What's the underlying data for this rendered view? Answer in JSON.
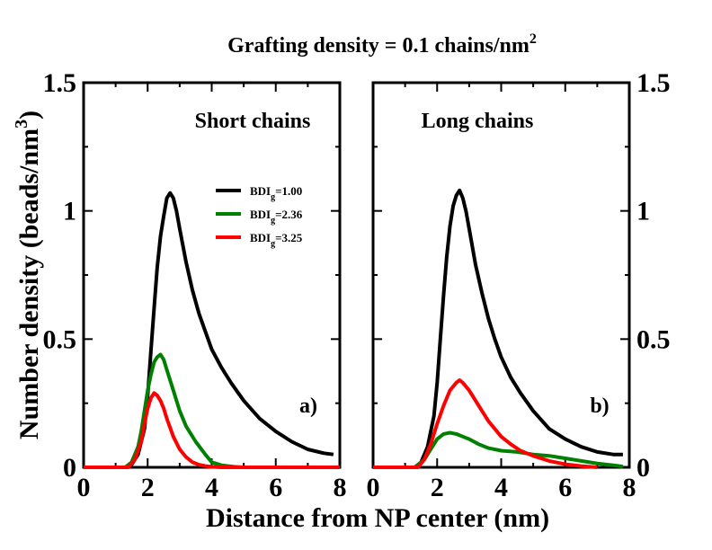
{
  "figure_title": "Grafting density = 0.1 chains/nm",
  "figure_title_sup": "2",
  "ylabel_main": "Number density (beads/nm",
  "ylabel_sup": "3",
  "ylabel_close": ")",
  "xlabel": "Distance from NP center (nm)",
  "colors": {
    "black": "#000000",
    "green": "#008000",
    "red": "#ff0000"
  },
  "legend": [
    {
      "base": "BDI",
      "sub": "g",
      "value": "=1.00",
      "color": "#000000"
    },
    {
      "base": "BDI",
      "sub": "g",
      "value": "=2.36",
      "color": "#008000"
    },
    {
      "base": "BDI",
      "sub": "g",
      "value": "=3.25",
      "color": "#ff0000"
    }
  ],
  "chart_data": [
    {
      "type": "line",
      "panel": "a)",
      "title": "Short chains",
      "xlim": [
        0,
        8
      ],
      "ylim": [
        0,
        1.5
      ],
      "xticks": [
        0,
        2,
        4,
        6,
        8
      ],
      "yticks": [
        0,
        0.5,
        1,
        1.5
      ],
      "ytick_labels": [
        "0",
        "0.5",
        "1",
        "1.5"
      ],
      "series": [
        {
          "name": "BDI_g=1.00",
          "color": "#000000",
          "x": [
            0,
            1.3,
            1.5,
            1.7,
            1.9,
            2.0,
            2.1,
            2.2,
            2.3,
            2.4,
            2.5,
            2.6,
            2.7,
            2.8,
            2.9,
            3.0,
            3.2,
            3.4,
            3.6,
            3.8,
            4.0,
            4.3,
            4.6,
            5.0,
            5.5,
            6.0,
            6.5,
            7.0,
            7.5,
            7.8
          ],
          "y": [
            0,
            0,
            0.01,
            0.05,
            0.15,
            0.28,
            0.45,
            0.62,
            0.78,
            0.9,
            0.98,
            1.05,
            1.07,
            1.05,
            1.0,
            0.93,
            0.8,
            0.69,
            0.6,
            0.53,
            0.46,
            0.39,
            0.33,
            0.26,
            0.19,
            0.14,
            0.1,
            0.07,
            0.055,
            0.05
          ]
        },
        {
          "name": "BDI_g=2.36",
          "color": "#008000",
          "x": [
            0,
            1.3,
            1.5,
            1.7,
            1.8,
            1.9,
            2.0,
            2.1,
            2.2,
            2.3,
            2.4,
            2.5,
            2.6,
            2.8,
            3.0,
            3.2,
            3.5,
            3.8,
            4.0,
            4.3,
            4.7,
            5.0,
            8.0
          ],
          "y": [
            0,
            0,
            0.02,
            0.08,
            0.14,
            0.22,
            0.3,
            0.36,
            0.41,
            0.43,
            0.44,
            0.42,
            0.38,
            0.3,
            0.22,
            0.16,
            0.1,
            0.05,
            0.02,
            0.008,
            0.002,
            0,
            0
          ]
        },
        {
          "name": "BDI_g=3.25",
          "color": "#ff0000",
          "x": [
            0,
            1.4,
            1.6,
            1.8,
            1.9,
            2.0,
            2.1,
            2.2,
            2.3,
            2.4,
            2.5,
            2.6,
            2.8,
            3.0,
            3.2,
            3.4,
            3.6,
            3.8,
            4.0,
            4.3,
            8.0
          ],
          "y": [
            0,
            0,
            0.03,
            0.1,
            0.17,
            0.23,
            0.27,
            0.29,
            0.28,
            0.26,
            0.23,
            0.19,
            0.12,
            0.07,
            0.04,
            0.02,
            0.01,
            0.005,
            0.002,
            0,
            0
          ]
        }
      ]
    },
    {
      "type": "line",
      "panel": "b)",
      "title": "Long chains",
      "xlim": [
        0,
        8
      ],
      "ylim": [
        0,
        1.5
      ],
      "xticks": [
        0,
        2,
        4,
        6,
        8
      ],
      "yticks": [
        0,
        0.5,
        1,
        1.5
      ],
      "ytick_labels": [
        "0",
        "0.5",
        "1",
        "1.5"
      ],
      "series": [
        {
          "name": "BDI_g=1.00",
          "color": "#000000",
          "x": [
            0,
            1.3,
            1.5,
            1.7,
            1.9,
            2.0,
            2.1,
            2.2,
            2.3,
            2.4,
            2.5,
            2.6,
            2.7,
            2.8,
            2.9,
            3.0,
            3.2,
            3.4,
            3.6,
            3.8,
            4.0,
            4.3,
            4.6,
            5.0,
            5.5,
            6.0,
            6.5,
            7.0,
            7.5,
            7.8
          ],
          "y": [
            0,
            0,
            0.02,
            0.08,
            0.2,
            0.33,
            0.5,
            0.67,
            0.82,
            0.94,
            1.02,
            1.06,
            1.08,
            1.05,
            1.0,
            0.93,
            0.79,
            0.68,
            0.58,
            0.5,
            0.43,
            0.35,
            0.29,
            0.22,
            0.15,
            0.11,
            0.08,
            0.06,
            0.05,
            0.05
          ]
        },
        {
          "name": "BDI_g=2.36",
          "color": "#008000",
          "x": [
            0,
            1.3,
            1.6,
            1.8,
            2.0,
            2.2,
            2.4,
            2.6,
            2.8,
            3.0,
            3.3,
            3.6,
            4.0,
            4.5,
            5.0,
            5.5,
            6.0,
            6.5,
            7.0,
            7.5,
            7.8
          ],
          "y": [
            0,
            0,
            0.03,
            0.07,
            0.11,
            0.13,
            0.135,
            0.13,
            0.12,
            0.11,
            0.09,
            0.075,
            0.065,
            0.06,
            0.05,
            0.045,
            0.035,
            0.025,
            0.015,
            0.008,
            0.003
          ]
        },
        {
          "name": "BDI_g=3.25",
          "color": "#ff0000",
          "x": [
            0,
            1.4,
            1.6,
            1.8,
            2.0,
            2.2,
            2.4,
            2.6,
            2.7,
            2.8,
            3.0,
            3.2,
            3.4,
            3.6,
            3.8,
            4.0,
            4.3,
            4.6,
            5.0,
            5.5,
            6.0,
            6.5,
            7.0
          ],
          "y": [
            0,
            0,
            0.03,
            0.09,
            0.17,
            0.24,
            0.3,
            0.33,
            0.34,
            0.33,
            0.3,
            0.26,
            0.22,
            0.18,
            0.15,
            0.12,
            0.09,
            0.065,
            0.045,
            0.025,
            0.012,
            0.005,
            0
          ]
        }
      ]
    }
  ]
}
